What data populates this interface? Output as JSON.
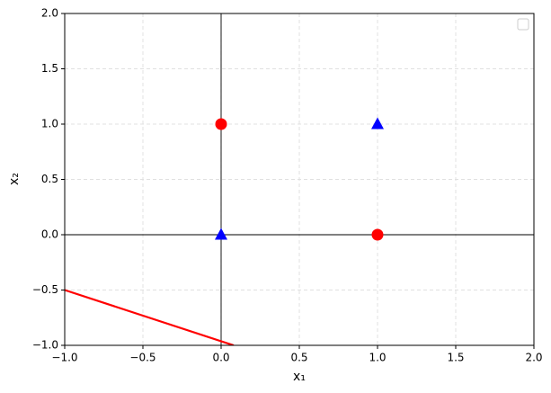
{
  "chart_data": {
    "type": "scatter",
    "xlabel": "x₁",
    "ylabel": "x₂",
    "xlim": [
      -1,
      2
    ],
    "ylim": [
      -1,
      2
    ],
    "xticks": [
      {
        "value": -1,
        "label": "−1.0"
      },
      {
        "value": -0.5,
        "label": "−0.5"
      },
      {
        "value": 0,
        "label": "0.0"
      },
      0.5,
      {
        "value": 1,
        "label": "1.0"
      },
      1.5,
      {
        "value": 2,
        "label": "2.0"
      }
    ],
    "yticks": [
      {
        "value": -1,
        "label": "−1.0"
      },
      {
        "value": -0.5,
        "label": "−0.5"
      },
      {
        "value": 0,
        "label": "0.0"
      },
      0.5,
      {
        "value": 1,
        "label": "1.0"
      },
      1.5,
      {
        "value": 2,
        "label": "2.0"
      }
    ],
    "grid": true,
    "zero_lines": true,
    "legend": "upper right",
    "series": [
      {
        "color": "#ff0000",
        "marker": "circle",
        "x": [
          0,
          1
        ],
        "y": [
          1,
          0
        ]
      },
      {
        "color": "#0000ff",
        "marker": "triangle",
        "x": [
          0,
          1
        ],
        "y": [
          0,
          1
        ]
      },
      {
        "color": "#ff0000",
        "marker": "line",
        "x": [
          -1,
          0.08
        ],
        "y": [
          -0.5,
          -1
        ]
      }
    ]
  }
}
